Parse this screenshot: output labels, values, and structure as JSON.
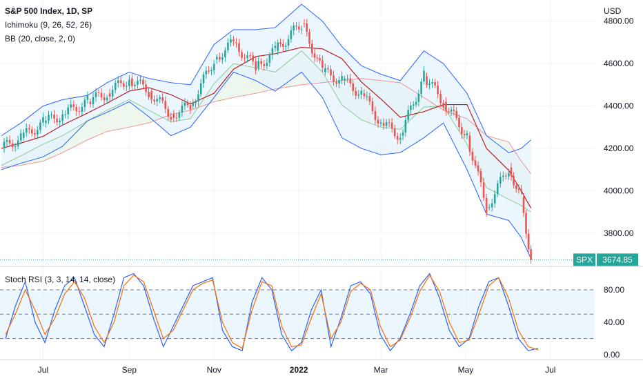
{
  "legend": {
    "symbol": "S&P 500 Index, 1D, SP",
    "ichimoku": "Ichimoku (9, 26, 52, 26)",
    "bb": "BB (20, close, 2, 0)",
    "stoch": "Stoch RSI (3, 3, 14, 14, close)"
  },
  "currency": "USD",
  "price_badge": {
    "ticker": "SPX",
    "value": "3674.85"
  },
  "colors": {
    "up": "#26a69a",
    "down": "#ef5350",
    "bb_band": "#2962ff",
    "bb_fill": "#e3f2fd",
    "ichi_span_a": "#4caf50",
    "ichi_span_b": "#ef5350",
    "kijun": "#b71c1c",
    "chikou": "#43a047",
    "stoch_k": "#2962ff",
    "stoch_d": "#ff6d00",
    "badge": "#26a69a",
    "stoch_band": "#e3f2fd"
  },
  "chart_data": [
    {
      "type": "candlestick",
      "title": "S&P 500 Index, 1D, SP",
      "yaxis_unit": "USD",
      "y_ticks": [
        "4800.00",
        "4600.00",
        "4400.00",
        "4200.00",
        "4000.00",
        "3800.00"
      ],
      "ylim": [
        3650,
        4900
      ],
      "x_labels": [
        "Jul",
        "Sep",
        "Nov",
        "2022",
        "Mar",
        "May",
        "Jul"
      ],
      "x": [
        "2021-06-01",
        "2021-06-15",
        "2021-07-01",
        "2021-07-15",
        "2021-08-02",
        "2021-08-16",
        "2021-09-01",
        "2021-09-15",
        "2021-10-01",
        "2021-10-15",
        "2021-11-01",
        "2021-11-15",
        "2021-12-01",
        "2021-12-15",
        "2022-01-03",
        "2022-01-18",
        "2022-02-01",
        "2022-02-15",
        "2022-03-01",
        "2022-03-15",
        "2022-04-01",
        "2022-04-15",
        "2022-05-02",
        "2022-05-16",
        "2022-06-01",
        "2022-06-10",
        "2022-06-17"
      ],
      "close": [
        4200,
        4250,
        4320,
        4360,
        4420,
        4460,
        4530,
        4470,
        4360,
        4400,
        4620,
        4700,
        4580,
        4660,
        4790,
        4560,
        4520,
        4460,
        4320,
        4260,
        4540,
        4420,
        4260,
        3920,
        4110,
        3970,
        3674.85
      ],
      "bollinger_upper": [
        4260,
        4320,
        4400,
        4430,
        4450,
        4510,
        4560,
        4530,
        4510,
        4500,
        4690,
        4760,
        4760,
        4770,
        4880,
        4800,
        4680,
        4590,
        4550,
        4520,
        4660,
        4600,
        4460,
        4260,
        4180,
        4200,
        4240
      ],
      "bollinger_lower": [
        4100,
        4130,
        4160,
        4210,
        4330,
        4370,
        4420,
        4350,
        4260,
        4300,
        4440,
        4560,
        4520,
        4470,
        4560,
        4440,
        4250,
        4200,
        4170,
        4180,
        4250,
        4320,
        4100,
        3890,
        3860,
        3780,
        3680
      ],
      "ichimoku_span_b": [
        4110,
        4120,
        4140,
        4180,
        4240,
        4280,
        4300,
        4320,
        4360,
        4380,
        4420,
        4440,
        4460,
        4480,
        4500,
        4510,
        4520,
        4530,
        4520,
        4510,
        4440,
        4380,
        4340,
        4260,
        4230,
        4140,
        4080
      ],
      "last_price": "3674.85",
      "last_label": "SPX"
    },
    {
      "type": "line",
      "title": "Stoch RSI (3, 3, 14, 14, close)",
      "y_ticks": [
        "80.00",
        "40.00",
        "0.00"
      ],
      "ylim": [
        -5,
        108
      ],
      "band": [
        20,
        80
      ],
      "midline": 50,
      "series": [
        {
          "values": [
            20,
            60,
            90,
            40,
            15,
            55,
            85,
            95,
            60,
            25,
            10,
            50,
            95,
            100,
            85,
            45,
            10,
            35,
            60,
            85,
            90,
            95,
            30,
            10,
            5,
            65,
            95,
            80,
            25,
            5,
            15,
            55,
            80,
            10,
            45,
            85,
            90,
            75,
            25,
            5,
            20,
            50,
            85,
            100,
            70,
            30,
            10,
            20,
            60,
            90,
            95,
            60,
            20,
            5,
            8
          ]
        },
        {
          "values": [
            25,
            50,
            80,
            55,
            25,
            45,
            75,
            90,
            70,
            35,
            15,
            40,
            85,
            98,
            90,
            55,
            20,
            30,
            55,
            80,
            88,
            92,
            40,
            15,
            8,
            55,
            90,
            85,
            35,
            10,
            12,
            45,
            75,
            20,
            40,
            78,
            88,
            80,
            35,
            10,
            18,
            45,
            78,
            98,
            78,
            40,
            15,
            18,
            50,
            85,
            95,
            70,
            30,
            10,
            6
          ]
        }
      ]
    }
  ]
}
